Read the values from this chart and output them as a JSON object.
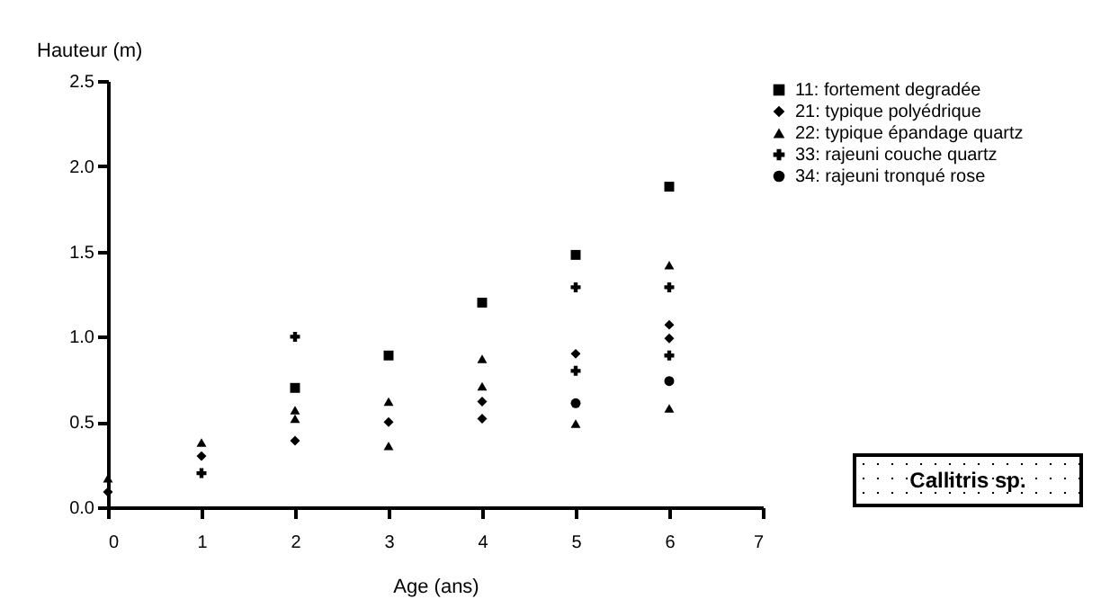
{
  "chart_data": {
    "type": "scatter",
    "xlabel": "Age (ans)",
    "ylabel": "Hauteur (m)",
    "xlim": [
      0,
      7
    ],
    "xticks": [
      0,
      1,
      2,
      3,
      4,
      5,
      6,
      7
    ],
    "ylim": [
      0,
      2.5
    ],
    "yticks": [
      {
        "value": 0,
        "label": "0.0"
      },
      0.5,
      {
        "value": 1,
        "label": "1.0"
      },
      1.5,
      {
        "value": 2,
        "label": "2.0"
      },
      2.5
    ],
    "grid": false,
    "legend": "top right",
    "annotations": [
      "Callitris sp."
    ],
    "series": [
      {
        "name": "11: fortement degradée",
        "color": "#000000",
        "marker": "square",
        "x": [
          2,
          3,
          4,
          5,
          6
        ],
        "values": [
          0.7,
          0.89,
          1.2,
          1.48,
          1.88
        ]
      },
      {
        "name": "21: typique polyédrique",
        "color": "#000000",
        "marker": "diamond",
        "x": [
          0,
          1,
          2,
          3,
          4,
          4,
          5,
          6,
          6
        ],
        "values": [
          0.09,
          0.3,
          0.39,
          0.5,
          0.62,
          0.52,
          0.9,
          1.07,
          0.99
        ]
      },
      {
        "name": "22: typique épandage quartz",
        "color": "#000000",
        "marker": "triangle",
        "x": [
          0,
          1,
          2,
          2,
          3,
          3,
          4,
          4,
          5,
          6,
          6
        ],
        "values": [
          0.17,
          0.38,
          0.57,
          0.52,
          0.62,
          0.36,
          0.87,
          0.71,
          0.49,
          1.42,
          0.58
        ]
      },
      {
        "name": "33: rajeuni couche quartz",
        "color": "#000000",
        "marker": "cross",
        "x": [
          1,
          2,
          5,
          5,
          6,
          6
        ],
        "values": [
          0.2,
          1.0,
          1.29,
          0.8,
          1.29,
          0.89
        ]
      },
      {
        "name": "34: rajeuni tronqué rose",
        "color": "#000000",
        "marker": "circle",
        "x": [
          5,
          6
        ],
        "values": [
          0.61,
          0.74
        ]
      }
    ]
  }
}
